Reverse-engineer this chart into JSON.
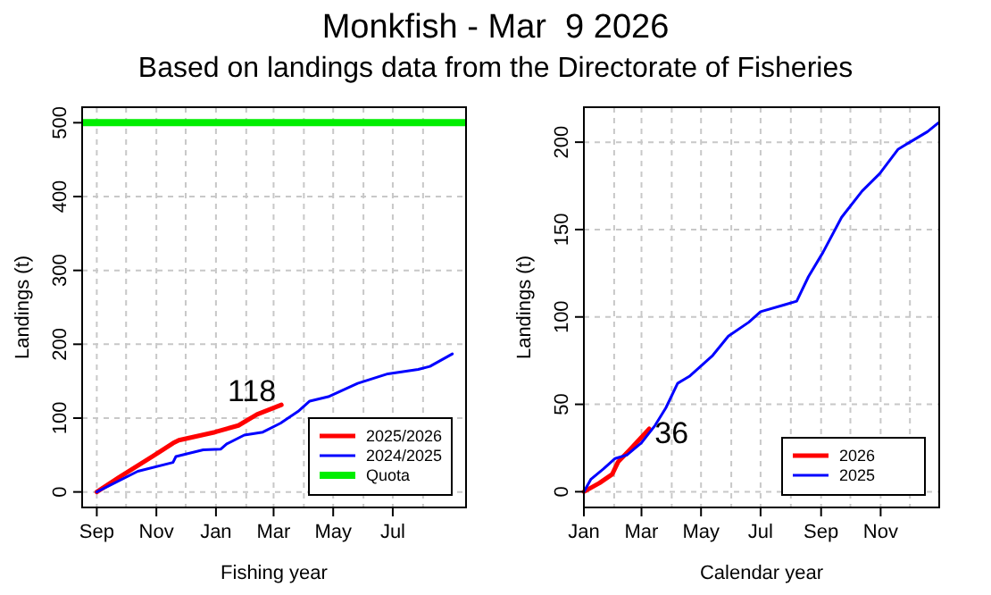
{
  "chart_data": [
    {
      "type": "line",
      "title": "Monkfish - Mar  9 2026",
      "subtitle": "Based on landings data from the Directorate of Fisheries",
      "xlabel": "Fishing year",
      "ylabel": "Landings (t)",
      "xlim": [
        "2025-08-17",
        "2026-09-14"
      ],
      "ylim": [
        -21,
        521
      ],
      "xticks": [
        {
          "value": "2025-09-01",
          "label": "Sep"
        },
        {
          "value": "2025-10-01",
          "label": null
        },
        {
          "value": "2025-11-01",
          "label": "Nov"
        },
        {
          "value": "2025-12-01",
          "label": null
        },
        {
          "value": "2026-01-01",
          "label": "Jan"
        },
        {
          "value": "2026-02-01",
          "label": null
        },
        {
          "value": "2026-03-01",
          "label": "Mar"
        },
        {
          "value": "2026-04-01",
          "label": null
        },
        {
          "value": "2026-05-01",
          "label": "May"
        },
        {
          "value": "2026-06-01",
          "label": null
        },
        {
          "value": "2026-07-01",
          "label": "Jul"
        },
        {
          "value": "2026-08-01",
          "label": null
        }
      ],
      "yticks": [
        0,
        100,
        200,
        300,
        400,
        500
      ],
      "grid": true,
      "legend": "bottom right",
      "series": [
        {
          "name": "2025/2026",
          "color": "#ff0000",
          "x": [
            "2025-09-01",
            "2025-09-24",
            "2025-10-28",
            "2025-11-18",
            "2025-11-24",
            "2025-12-31",
            "2026-01-24",
            "2026-02-12",
            "2026-03-09"
          ],
          "values": [
            0,
            20,
            48,
            66,
            70,
            81,
            90,
            105,
            118
          ]
        },
        {
          "name": "2024/2025",
          "color": "#0000ff",
          "x": [
            "2025-09-01",
            "2025-10-13",
            "2025-11-18",
            "2025-11-21",
            "2025-12-19",
            "2026-01-06",
            "2026-01-12",
            "2026-01-30",
            "2026-02-18",
            "2026-03-08",
            "2026-03-26",
            "2026-04-07",
            "2026-04-26",
            "2026-05-26",
            "2026-06-26",
            "2026-07-27",
            "2026-08-08",
            "2026-08-31"
          ],
          "values": [
            0,
            28,
            40,
            48,
            57,
            58,
            65,
            77,
            81,
            93,
            109,
            123,
            129,
            147,
            160,
            166,
            170,
            187
          ]
        }
      ],
      "ref_lines": [
        {
          "axis": "y",
          "value": 500,
          "label": "Quota",
          "color": "#00ee00"
        }
      ],
      "annotations": [
        {
          "text": "118",
          "x": "2026-03-09",
          "y": 118
        }
      ]
    },
    {
      "type": "line",
      "xlabel": "Calendar year",
      "ylabel": "Landings (t)",
      "xlim": [
        "--01-01",
        "--12-31"
      ],
      "ylim": [
        -9,
        220
      ],
      "xticks": [
        {
          "value": "--01-01",
          "label": "Jan"
        },
        {
          "value": "--02-01",
          "label": null
        },
        {
          "value": "--03-01",
          "label": "Mar"
        },
        {
          "value": "--04-01",
          "label": null
        },
        {
          "value": "--05-01",
          "label": "May"
        },
        {
          "value": "--06-01",
          "label": null
        },
        {
          "value": "--07-01",
          "label": "Jul"
        },
        {
          "value": "--08-01",
          "label": null
        },
        {
          "value": "--09-01",
          "label": "Sep"
        },
        {
          "value": "--10-01",
          "label": null
        },
        {
          "value": "--11-01",
          "label": "Nov"
        },
        {
          "value": "--12-01",
          "label": null
        }
      ],
      "yticks": [
        0,
        50,
        100,
        150,
        200
      ],
      "grid": true,
      "legend": "bottom right",
      "series": [
        {
          "name": "2026",
          "color": "#ff0000",
          "x": [
            "--01-01",
            "--01-17",
            "--01-30",
            "--02-05",
            "--02-17",
            "--03-09"
          ],
          "values": [
            0,
            5,
            10,
            17,
            24,
            36
          ]
        },
        {
          "name": "2025",
          "color": "#0000ff",
          "x": [
            "--01-01",
            "--01-08",
            "--01-21",
            "--02-02",
            "--02-14",
            "--03-01",
            "--03-15",
            "--03-26",
            "--04-07",
            "--04-19",
            "--05-13",
            "--05-29",
            "--06-19",
            "--07-01",
            "--07-26",
            "--08-07",
            "--08-19",
            "--09-03",
            "--09-22",
            "--10-13",
            "--10-31",
            "--11-19",
            "--12-01",
            "--12-19",
            "--12-30"
          ],
          "values": [
            0,
            7,
            13,
            19,
            21,
            28,
            38,
            48,
            62,
            66,
            78,
            89,
            97,
            103,
            107,
            109,
            123,
            137,
            157,
            172,
            182,
            196,
            200,
            206,
            211
          ]
        }
      ],
      "annotations": [
        {
          "text": "36",
          "x": "--03-09",
          "y": 36
        }
      ]
    }
  ]
}
